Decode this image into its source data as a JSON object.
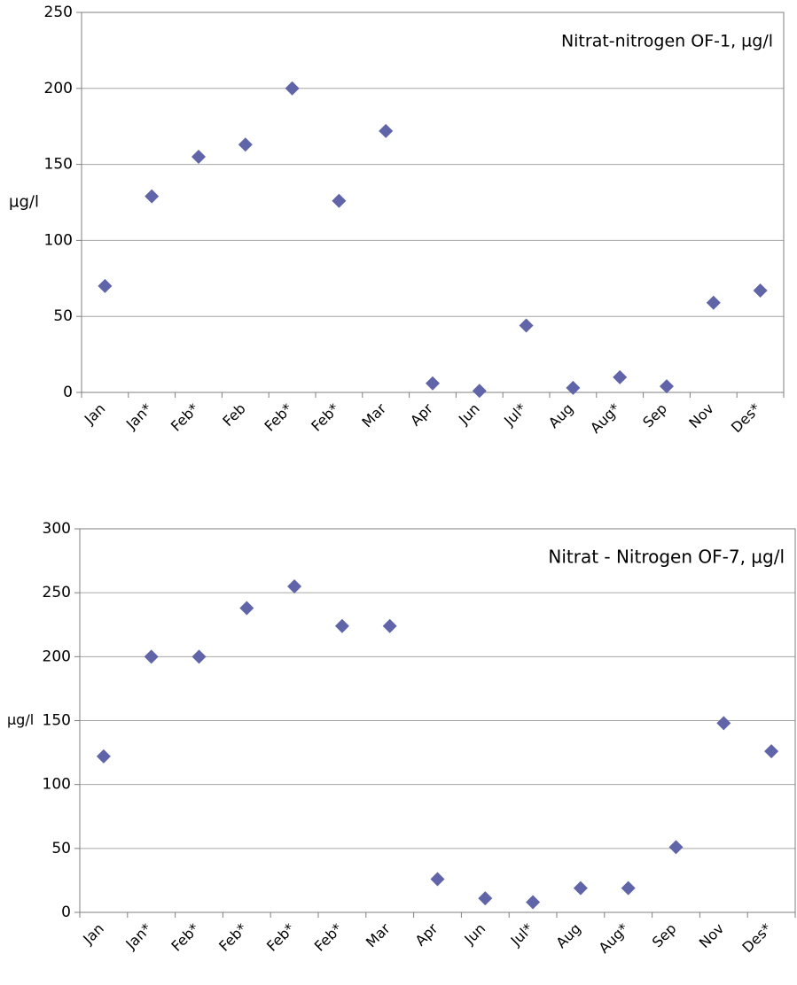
{
  "chart_data": [
    {
      "type": "scatter",
      "annotation": "Nitrat-nitrogen OF-1, µg/l",
      "y_label": "µg/l",
      "categories": [
        "Jan",
        "Jan*",
        "Feb*",
        "Feb",
        "Feb*",
        "Feb*",
        "Mar",
        "Apr",
        "Jun",
        "Jul*",
        "Aug",
        "Aug*",
        "Sep",
        "Nov",
        "Des*"
      ],
      "values": [
        70,
        129,
        155,
        163,
        200,
        126,
        172,
        6,
        1,
        44,
        3,
        10,
        4,
        59,
        67
      ],
      "color": "#6064a8",
      "ylim": [
        0,
        250
      ],
      "yticks": [
        0,
        50,
        100,
        150,
        200,
        250
      ],
      "grid": true
    },
    {
      "type": "scatter",
      "annotation": "Nitrat - Nitrogen OF-7, µg/l",
      "y_label": "µg/l",
      "categories": [
        "Jan",
        "Jan*",
        "Feb*",
        "Feb*",
        "Feb*",
        "Feb*",
        "Mar",
        "Apr",
        "Jun",
        "Jul*",
        "Aug",
        "Aug*",
        "Sep",
        "Nov",
        "Des*"
      ],
      "values": [
        122,
        200,
        200,
        238,
        255,
        224,
        224,
        26,
        11,
        8,
        19,
        19,
        51,
        148,
        126
      ],
      "color": "#6064a8",
      "ylim": [
        0,
        300
      ],
      "yticks": [
        0,
        50,
        100,
        150,
        200,
        250,
        300
      ],
      "grid": true
    }
  ]
}
